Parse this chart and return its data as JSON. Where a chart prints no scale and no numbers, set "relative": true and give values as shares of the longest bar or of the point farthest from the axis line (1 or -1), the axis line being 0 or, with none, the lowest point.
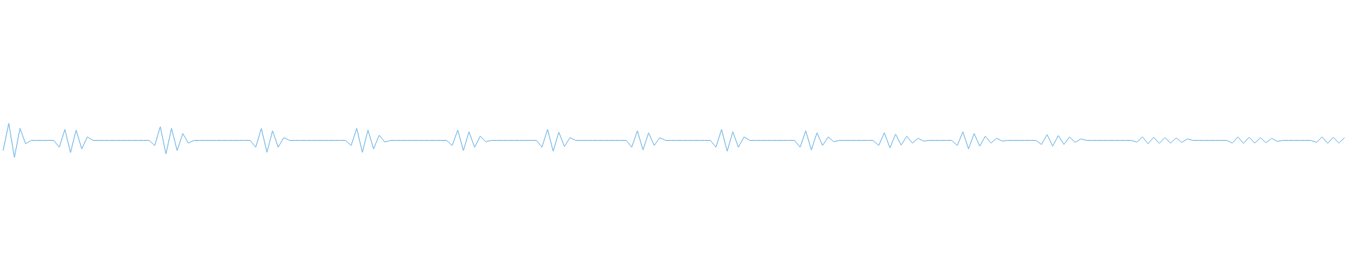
{
  "chart_data": {
    "type": "line",
    "relative": true,
    "categories": [
      null,
      null,
      null,
      null,
      null,
      null,
      null,
      null,
      null,
      null,
      null,
      null,
      null,
      null,
      null,
      null,
      null,
      null,
      null,
      null,
      null,
      null,
      null,
      null,
      null,
      null,
      null,
      null,
      null,
      null,
      null,
      null,
      null,
      null,
      null,
      null,
      null,
      null,
      null,
      null,
      null,
      null,
      null,
      null,
      null,
      null,
      null,
      null,
      null,
      null,
      null,
      null,
      null,
      null,
      null,
      null,
      null,
      null,
      null,
      null,
      null,
      null,
      null,
      null,
      null,
      null,
      null,
      null,
      null,
      null,
      null,
      null,
      null,
      null,
      null,
      null,
      null,
      null,
      null,
      null,
      null,
      null,
      null,
      null,
      null,
      null,
      null,
      null,
      null,
      null,
      null,
      null,
      null,
      null,
      null,
      null,
      null,
      null,
      null,
      null,
      null,
      null,
      null,
      null,
      null,
      null,
      null,
      null,
      null,
      null,
      null,
      null,
      null,
      null,
      null,
      null,
      null,
      null,
      null,
      null,
      null,
      null,
      null,
      null,
      null,
      null,
      null,
      null,
      null,
      null,
      null,
      null,
      null,
      null,
      null,
      null,
      null,
      null,
      null,
      null,
      null,
      null,
      null,
      null,
      null,
      null,
      null,
      null,
      null,
      null,
      null,
      null,
      null,
      null,
      null,
      null,
      null,
      null,
      null,
      null,
      null,
      null,
      null,
      null,
      null,
      null,
      null,
      null,
      null,
      null,
      null,
      null,
      null,
      null,
      null,
      null,
      null,
      null,
      null,
      null,
      null,
      null,
      null,
      null,
      null,
      null,
      null,
      null,
      null,
      null,
      null,
      null,
      null,
      null,
      null,
      null,
      null,
      null,
      null,
      null,
      null,
      null,
      null,
      null,
      null,
      null,
      null,
      null,
      null,
      null,
      null,
      null,
      null,
      null,
      null,
      null,
      null,
      null,
      null,
      null,
      null,
      null,
      null,
      null,
      null,
      null,
      null,
      null,
      null,
      null,
      null,
      null,
      null,
      null,
      null,
      null,
      null,
      null,
      null,
      null
    ],
    "series": [
      {
        "color": "#5dade2",
        "values": [
          0.2,
          1,
          0,
          0.85,
          0.4,
          0.5,
          0.5,
          0.5,
          0.5,
          0.5,
          0.3,
          0.82,
          0.14,
          0.8,
          0.25,
          0.6,
          0.5,
          0.5,
          0.5,
          0.5,
          0.5,
          0.5,
          0.5,
          0.5,
          0.5,
          0.5,
          0.5,
          0.35,
          0.9,
          0.1,
          0.85,
          0.2,
          0.7,
          0.42,
          0.5,
          0.5,
          0.5,
          0.5,
          0.5,
          0.5,
          0.5,
          0.5,
          0.5,
          0.5,
          0.5,
          0.3,
          0.85,
          0.15,
          0.78,
          0.3,
          0.58,
          0.5,
          0.5,
          0.5,
          0.5,
          0.5,
          0.5,
          0.5,
          0.5,
          0.5,
          0.5,
          0.5,
          0.35,
          0.85,
          0.15,
          0.8,
          0.25,
          0.65,
          0.45,
          0.5,
          0.5,
          0.5,
          0.5,
          0.5,
          0.5,
          0.5,
          0.5,
          0.5,
          0.5,
          0.5,
          0.35,
          0.8,
          0.2,
          0.75,
          0.3,
          0.62,
          0.46,
          0.5,
          0.5,
          0.5,
          0.5,
          0.5,
          0.5,
          0.5,
          0.5,
          0.5,
          0.3,
          0.82,
          0.18,
          0.74,
          0.32,
          0.58,
          0.5,
          0.5,
          0.5,
          0.5,
          0.5,
          0.5,
          0.5,
          0.5,
          0.5,
          0.5,
          0.3,
          0.78,
          0.22,
          0.72,
          0.35,
          0.58,
          0.5,
          0.5,
          0.5,
          0.5,
          0.5,
          0.5,
          0.5,
          0.5,
          0.5,
          0.3,
          0.82,
          0.18,
          0.75,
          0.3,
          0.6,
          0.5,
          0.5,
          0.5,
          0.5,
          0.5,
          0.5,
          0.5,
          0.5,
          0.5,
          0.3,
          0.78,
          0.22,
          0.72,
          0.35,
          0.6,
          0.46,
          0.5,
          0.5,
          0.5,
          0.5,
          0.5,
          0.5,
          0.5,
          0.35,
          0.72,
          0.28,
          0.68,
          0.36,
          0.62,
          0.42,
          0.56,
          0.48,
          0.5,
          0.5,
          0.5,
          0.5,
          0.5,
          0.35,
          0.75,
          0.25,
          0.7,
          0.33,
          0.62,
          0.42,
          0.56,
          0.48,
          0.5,
          0.5,
          0.5,
          0.5,
          0.5,
          0.5,
          0.38,
          0.67,
          0.33,
          0.64,
          0.38,
          0.6,
          0.44,
          0.54,
          0.5,
          0.5,
          0.5,
          0.5,
          0.5,
          0.5,
          0.5,
          0.5,
          0.5,
          0.45,
          0.6,
          0.4,
          0.59,
          0.41,
          0.58,
          0.42,
          0.57,
          0.44,
          0.54,
          0.5,
          0.5,
          0.5,
          0.5,
          0.5,
          0.5,
          0.5,
          0.42,
          0.6,
          0.41,
          0.59,
          0.42,
          0.58,
          0.43,
          0.56,
          0.47,
          0.5,
          0.5,
          0.5,
          0.5,
          0.5,
          0.5,
          0.44,
          0.6,
          0.41,
          0.59,
          0.42,
          0.58
        ]
      }
    ]
  }
}
